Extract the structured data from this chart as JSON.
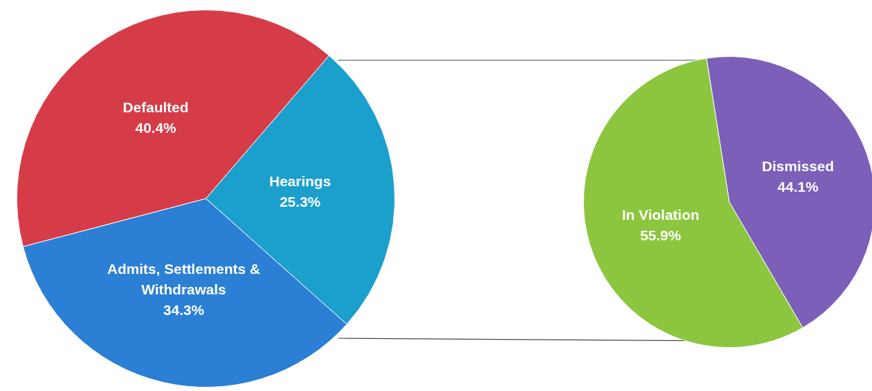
{
  "chart_data": [
    {
      "type": "pie",
      "categories": [
        "Hearings",
        "Admits, Settlements & Withdrawals",
        "Defaulted"
      ],
      "values": [
        25.3,
        34.3,
        40.4
      ],
      "value_labels": [
        "25.3%",
        "34.3%",
        "40.4%"
      ],
      "colors": [
        "#1b9fcc",
        "#2b7fd4",
        "#d63c48"
      ],
      "legend": false
    },
    {
      "type": "pie",
      "categories": [
        "Dismissed",
        "In Violation"
      ],
      "values": [
        44.1,
        55.9
      ],
      "value_labels": [
        "44.1%",
        "55.9%"
      ],
      "colors": [
        "#7b5fb8",
        "#8cc63f"
      ],
      "legend": false
    }
  ]
}
